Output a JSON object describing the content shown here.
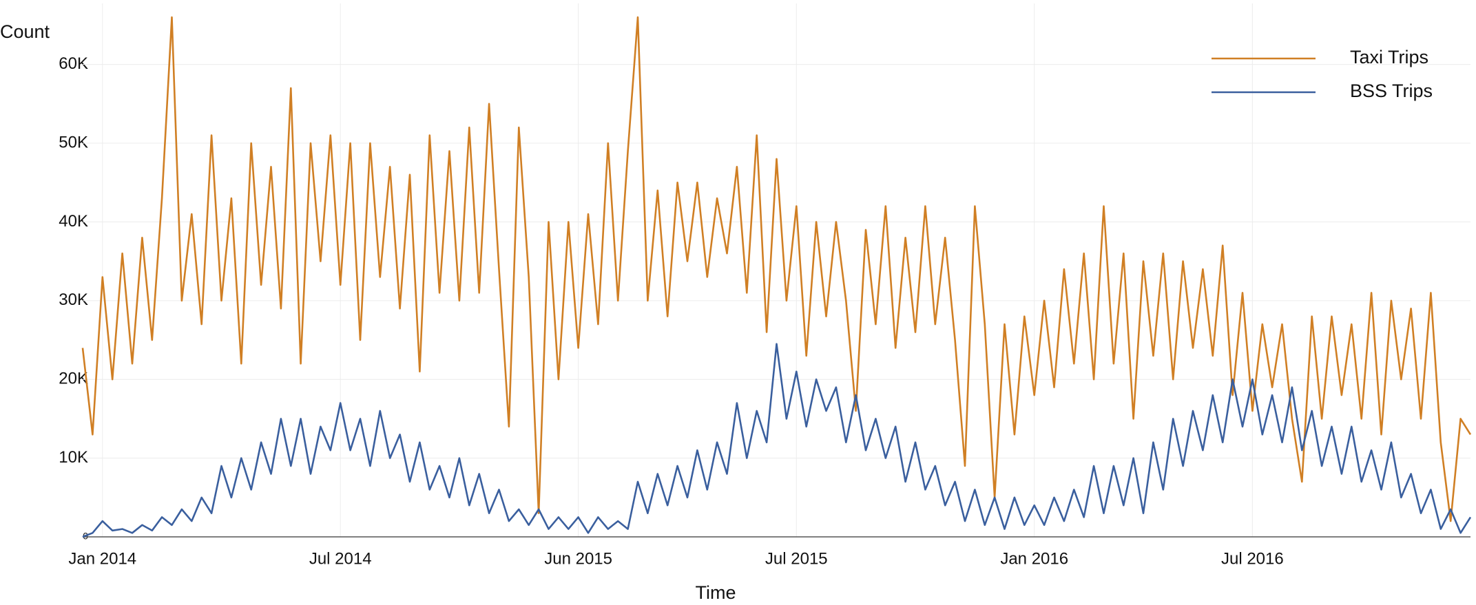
{
  "chart_data": {
    "type": "line",
    "x_label": "Time",
    "y_label": "Count",
    "categories": [
      null,
      null,
      "Jan 2014",
      null,
      null,
      null,
      null,
      null,
      null,
      null,
      null,
      null,
      null,
      null,
      null,
      null,
      null,
      null,
      null,
      null,
      null,
      null,
      null,
      null,
      null,
      null,
      "Jul 2014",
      null,
      null,
      null,
      null,
      null,
      null,
      null,
      null,
      null,
      null,
      null,
      null,
      null,
      null,
      null,
      null,
      null,
      null,
      null,
      null,
      null,
      null,
      null,
      "Jun 2015",
      null,
      null,
      null,
      null,
      null,
      null,
      null,
      null,
      null,
      null,
      null,
      null,
      null,
      null,
      null,
      null,
      null,
      null,
      null,
      null,
      null,
      "Jul 2015",
      null,
      null,
      null,
      null,
      null,
      null,
      null,
      null,
      null,
      null,
      null,
      null,
      null,
      null,
      null,
      null,
      null,
      null,
      null,
      null,
      null,
      null,
      null,
      "Jan 2016",
      null,
      null,
      null,
      null,
      null,
      null,
      null,
      null,
      null,
      null,
      null,
      null,
      null,
      null,
      null,
      null,
      null,
      null,
      null,
      null,
      null,
      "Jul 2016",
      null,
      null,
      null,
      null,
      null,
      null,
      null,
      null,
      null,
      null,
      null,
      null,
      null,
      null,
      null,
      null,
      null,
      null,
      null,
      null,
      null,
      null
    ],
    "series": [
      {
        "name": "Taxi Trips",
        "color": "#d07f24",
        "values": [
          24000,
          13000,
          33000,
          20000,
          36000,
          22000,
          38000,
          25000,
          43000,
          66000,
          30000,
          41000,
          27000,
          51000,
          30000,
          43000,
          22000,
          50000,
          32000,
          47000,
          29000,
          57000,
          22000,
          50000,
          35000,
          51000,
          32000,
          50000,
          25000,
          50000,
          33000,
          47000,
          29000,
          46000,
          21000,
          51000,
          31000,
          49000,
          30000,
          52000,
          31000,
          55000,
          34000,
          14000,
          52000,
          33000,
          3000,
          40000,
          20000,
          40000,
          24000,
          41000,
          27000,
          50000,
          30000,
          49000,
          66000,
          30000,
          44000,
          28000,
          45000,
          35000,
          45000,
          33000,
          43000,
          36000,
          47000,
          31000,
          51000,
          26000,
          48000,
          30000,
          42000,
          23000,
          40000,
          28000,
          40000,
          30000,
          16000,
          39000,
          27000,
          42000,
          24000,
          38000,
          26000,
          42000,
          27000,
          38000,
          25000,
          9000,
          42000,
          27000,
          5000,
          27000,
          13000,
          28000,
          18000,
          30000,
          19000,
          34000,
          22000,
          36000,
          20000,
          42000,
          22000,
          36000,
          15000,
          35000,
          23000,
          36000,
          20000,
          35000,
          24000,
          34000,
          23000,
          37000,
          18000,
          31000,
          16000,
          27000,
          19000,
          27000,
          15000,
          7000,
          28000,
          15000,
          28000,
          18000,
          27000,
          15000,
          31000,
          13000,
          30000,
          20000,
          29000,
          15000,
          31000,
          12000,
          2000,
          15000,
          13000
        ]
      },
      {
        "name": "BSS Trips",
        "color": "#3a5f9e",
        "values": [
          0,
          500,
          2000,
          800,
          1000,
          500,
          1500,
          800,
          2500,
          1500,
          3500,
          2000,
          5000,
          3000,
          9000,
          5000,
          10000,
          6000,
          12000,
          8000,
          15000,
          9000,
          15000,
          8000,
          14000,
          11000,
          17000,
          11000,
          15000,
          9000,
          16000,
          10000,
          13000,
          7000,
          12000,
          6000,
          9000,
          5000,
          10000,
          4000,
          8000,
          3000,
          6000,
          2000,
          3500,
          1500,
          3500,
          1000,
          2500,
          1000,
          2500,
          500,
          2500,
          1000,
          2000,
          1000,
          7000,
          3000,
          8000,
          4000,
          9000,
          5000,
          11000,
          6000,
          12000,
          8000,
          17000,
          10000,
          16000,
          12000,
          24500,
          15000,
          21000,
          14000,
          20000,
          16000,
          19000,
          12000,
          18000,
          11000,
          15000,
          10000,
          14000,
          7000,
          12000,
          6000,
          9000,
          4000,
          7000,
          2000,
          6000,
          1500,
          5000,
          1000,
          5000,
          1500,
          4000,
          1500,
          5000,
          2000,
          6000,
          2500,
          9000,
          3000,
          9000,
          4000,
          10000,
          3000,
          12000,
          6000,
          15000,
          9000,
          16000,
          11000,
          18000,
          12000,
          20000,
          14000,
          20000,
          13000,
          18000,
          12000,
          19000,
          11000,
          16000,
          9000,
          14000,
          8000,
          14000,
          7000,
          11000,
          6000,
          12000,
          5000,
          8000,
          3000,
          6000,
          1000,
          3500,
          500,
          2500
        ]
      }
    ],
    "ylim": [
      0,
      66000
    ],
    "yticks": [
      {
        "value": 0,
        "label": "0"
      },
      {
        "value": 10000,
        "label": "10K"
      },
      {
        "value": 20000,
        "label": "20K"
      },
      {
        "value": 30000,
        "label": "30K"
      },
      {
        "value": 40000,
        "label": "40K"
      },
      {
        "value": 50000,
        "label": "50K"
      },
      {
        "value": 60000,
        "label": "60K"
      }
    ],
    "grid": true,
    "legend": "top-right"
  }
}
